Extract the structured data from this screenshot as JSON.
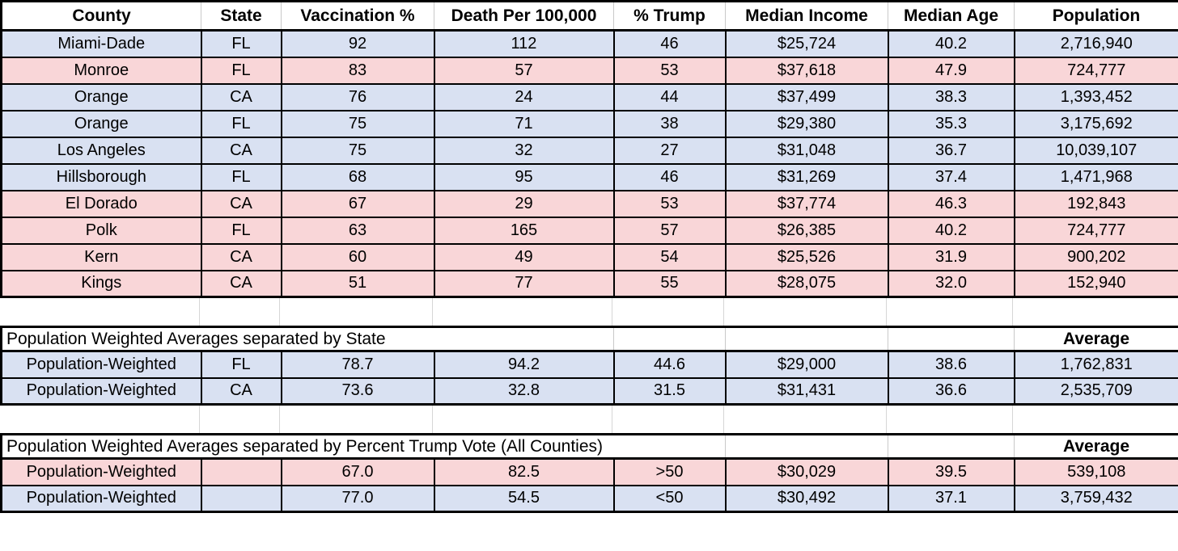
{
  "colors": {
    "row_blue": "#D9E1F2",
    "row_pink": "#F9D6D8",
    "cell_border": "#000000",
    "gridline": "#C9C9C9",
    "background": "#FFFFFF"
  },
  "columns": [
    "County",
    "State",
    "Vaccination %",
    "Death Per 100,000",
    "% Trump",
    "Median Income",
    "Median Age",
    "Population"
  ],
  "counties": [
    {
      "county": "Miami-Dade",
      "state": "FL",
      "vaccination": "92",
      "death": "112",
      "trump": "46",
      "income": "$25,724",
      "age": "40.2",
      "population": "2,716,940",
      "tint": "blue"
    },
    {
      "county": "Monroe",
      "state": "FL",
      "vaccination": "83",
      "death": "57",
      "trump": "53",
      "income": "$37,618",
      "age": "47.9",
      "population": "724,777",
      "tint": "pink"
    },
    {
      "county": "Orange",
      "state": "CA",
      "vaccination": "76",
      "death": "24",
      "trump": "44",
      "income": "$37,499",
      "age": "38.3",
      "population": "1,393,452",
      "tint": "blue"
    },
    {
      "county": "Orange",
      "state": "FL",
      "vaccination": "75",
      "death": "71",
      "trump": "38",
      "income": "$29,380",
      "age": "35.3",
      "population": "3,175,692",
      "tint": "blue"
    },
    {
      "county": "Los Angeles",
      "state": "CA",
      "vaccination": "75",
      "death": "32",
      "trump": "27",
      "income": "$31,048",
      "age": "36.7",
      "population": "10,039,107",
      "tint": "blue"
    },
    {
      "county": "Hillsborough",
      "state": "FL",
      "vaccination": "68",
      "death": "95",
      "trump": "46",
      "income": "$31,269",
      "age": "37.4",
      "population": "1,471,968",
      "tint": "blue"
    },
    {
      "county": "El Dorado",
      "state": "CA",
      "vaccination": "67",
      "death": "29",
      "trump": "53",
      "income": "$37,774",
      "age": "46.3",
      "population": "192,843",
      "tint": "pink"
    },
    {
      "county": "Polk",
      "state": "FL",
      "vaccination": "63",
      "death": "165",
      "trump": "57",
      "income": "$26,385",
      "age": "40.2",
      "population": "724,777",
      "tint": "pink"
    },
    {
      "county": "Kern",
      "state": "CA",
      "vaccination": "60",
      "death": "49",
      "trump": "54",
      "income": "$25,526",
      "age": "31.9",
      "population": "900,202",
      "tint": "pink"
    },
    {
      "county": "Kings",
      "state": "CA",
      "vaccination": "51",
      "death": "77",
      "trump": "55",
      "income": "$28,075",
      "age": "32.0",
      "population": "152,940",
      "tint": "pink"
    }
  ],
  "sections": {
    "by_state": {
      "title": "Population Weighted Averages separated by State",
      "average_label": "Average",
      "rows": [
        {
          "label": "Population-Weighted",
          "state": "FL",
          "vaccination": "78.7",
          "death": "94.2",
          "trump": "44.6",
          "income": "$29,000",
          "age": "38.6",
          "population": "1,762,831",
          "tint": "blue"
        },
        {
          "label": "Population-Weighted",
          "state": "CA",
          "vaccination": "73.6",
          "death": "32.8",
          "trump": "31.5",
          "income": "$31,431",
          "age": "36.6",
          "population": "2,535,709",
          "tint": "blue"
        }
      ]
    },
    "by_trump": {
      "title": "Population Weighted Averages separated by Percent Trump Vote (All Counties)",
      "average_label": "Average",
      "rows": [
        {
          "label": "Population-Weighted",
          "state": "",
          "vaccination": "67.0",
          "death": "82.5",
          "trump": ">50",
          "income": "$30,029",
          "age": "39.5",
          "population": "539,108",
          "tint": "pink"
        },
        {
          "label": "Population-Weighted",
          "state": "",
          "vaccination": "77.0",
          "death": "54.5",
          "trump": "<50",
          "income": "$30,492",
          "age": "37.1",
          "population": "3,759,432",
          "tint": "blue"
        }
      ]
    }
  },
  "chart_data": {
    "type": "table",
    "columns": [
      "County",
      "State",
      "Vaccination %",
      "Death Per 100,000",
      "% Trump",
      "Median Income",
      "Median Age",
      "Population"
    ],
    "rows": [
      [
        "Miami-Dade",
        "FL",
        92,
        112,
        46,
        25724,
        40.2,
        2716940
      ],
      [
        "Monroe",
        "FL",
        83,
        57,
        53,
        37618,
        47.9,
        724777
      ],
      [
        "Orange",
        "CA",
        76,
        24,
        44,
        37499,
        38.3,
        1393452
      ],
      [
        "Orange",
        "FL",
        75,
        71,
        38,
        29380,
        35.3,
        3175692
      ],
      [
        "Los Angeles",
        "CA",
        75,
        32,
        27,
        31048,
        36.7,
        10039107
      ],
      [
        "Hillsborough",
        "FL",
        68,
        95,
        46,
        31269,
        37.4,
        1471968
      ],
      [
        "El Dorado",
        "CA",
        67,
        29,
        53,
        37774,
        46.3,
        192843
      ],
      [
        "Polk",
        "FL",
        63,
        165,
        57,
        26385,
        40.2,
        724777
      ],
      [
        "Kern",
        "CA",
        60,
        49,
        54,
        25526,
        31.9,
        900202
      ],
      [
        "Kings",
        "CA",
        51,
        77,
        55,
        28075,
        32.0,
        152940
      ]
    ],
    "row_tints": [
      "blue",
      "pink",
      "blue",
      "blue",
      "blue",
      "blue",
      "pink",
      "pink",
      "pink",
      "pink"
    ],
    "summary_tables": [
      {
        "title": "Population Weighted Averages separated by State",
        "last_column_header": "Average",
        "rows": [
          [
            "Population-Weighted",
            "FL",
            78.7,
            94.2,
            44.6,
            29000,
            38.6,
            1762831
          ],
          [
            "Population-Weighted",
            "CA",
            73.6,
            32.8,
            31.5,
            31431,
            36.6,
            2535709
          ]
        ],
        "row_tints": [
          "blue",
          "blue"
        ]
      },
      {
        "title": "Population Weighted Averages separated by Percent Trump Vote (All Counties)",
        "last_column_header": "Average",
        "rows": [
          [
            "Population-Weighted",
            "",
            67.0,
            82.5,
            ">50",
            30029,
            39.5,
            539108
          ],
          [
            "Population-Weighted",
            "",
            77.0,
            54.5,
            "<50",
            30492,
            37.1,
            3759432
          ]
        ],
        "row_tints": [
          "pink",
          "blue"
        ]
      }
    ]
  }
}
